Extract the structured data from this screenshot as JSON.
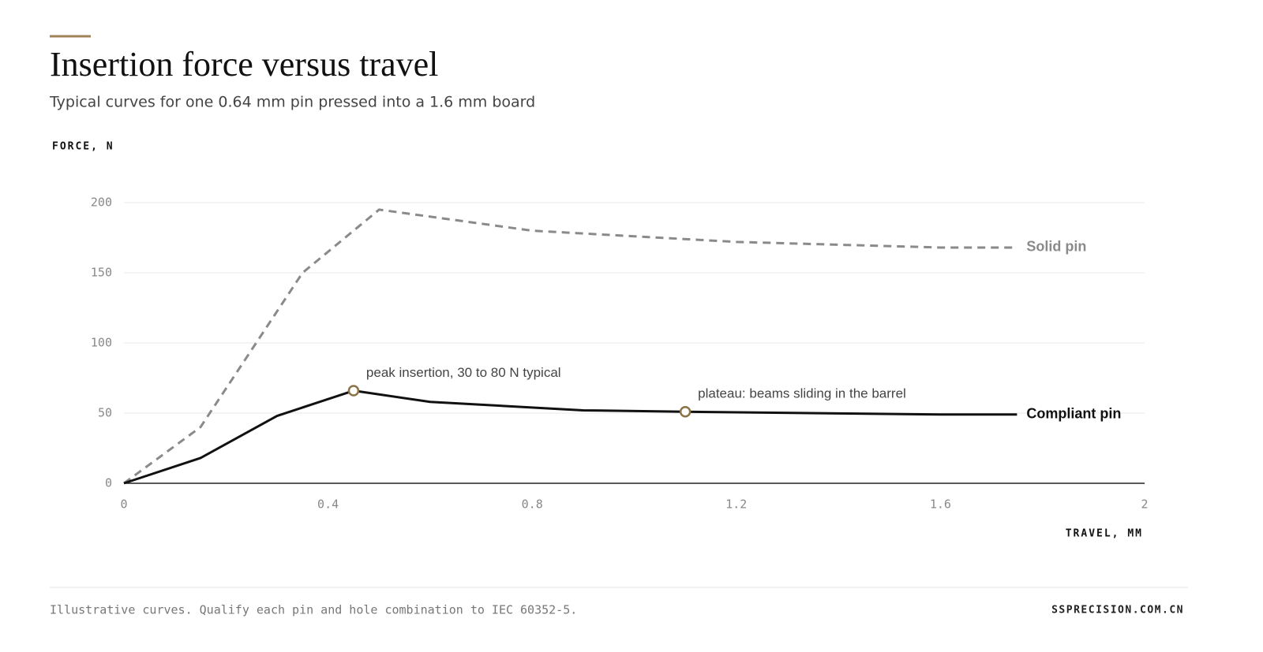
{
  "chart_data": {
    "type": "line",
    "title": "Insertion force versus travel",
    "subtitle": "Typical curves for one 0.64 mm pin pressed into a 1.6 mm board",
    "y_label": "FORCE, N",
    "x_label": "TRAVEL, MM",
    "xlim": [
      0,
      2
    ],
    "xticks": [
      0,
      0.4,
      0.8,
      1.2,
      1.6,
      2
    ],
    "ylim": [
      0,
      200
    ],
    "yticks": [
      0,
      50,
      100,
      150,
      200
    ],
    "grid": true,
    "series": [
      {
        "name": "Solid pin",
        "color": "#8a8a8a",
        "dashed": true,
        "x": [
          0,
          0.15,
          0.35,
          0.5,
          0.8,
          1.2,
          1.6,
          1.75
        ],
        "values": [
          0,
          40,
          150,
          195,
          180,
          172,
          168,
          168
        ]
      },
      {
        "name": "Compliant pin",
        "color": "#111111",
        "dashed": false,
        "x": [
          0,
          0.15,
          0.3,
          0.45,
          0.6,
          0.9,
          1.1,
          1.6,
          1.75
        ],
        "values": [
          0,
          18,
          48,
          66,
          58,
          52,
          51,
          49,
          49
        ]
      }
    ],
    "annotations": [
      {
        "text": "peak insertion, 30 to 80 N typical",
        "x": 0.45,
        "y": 66
      },
      {
        "text": "plateau: beams sliding in the barrel",
        "x": 1.1,
        "y": 51
      }
    ]
  },
  "footer": {
    "note": "Illustrative curves. Qualify each pin and hole combination to IEC 60352-5.",
    "source": "SSPRECISION.COM.CN"
  }
}
